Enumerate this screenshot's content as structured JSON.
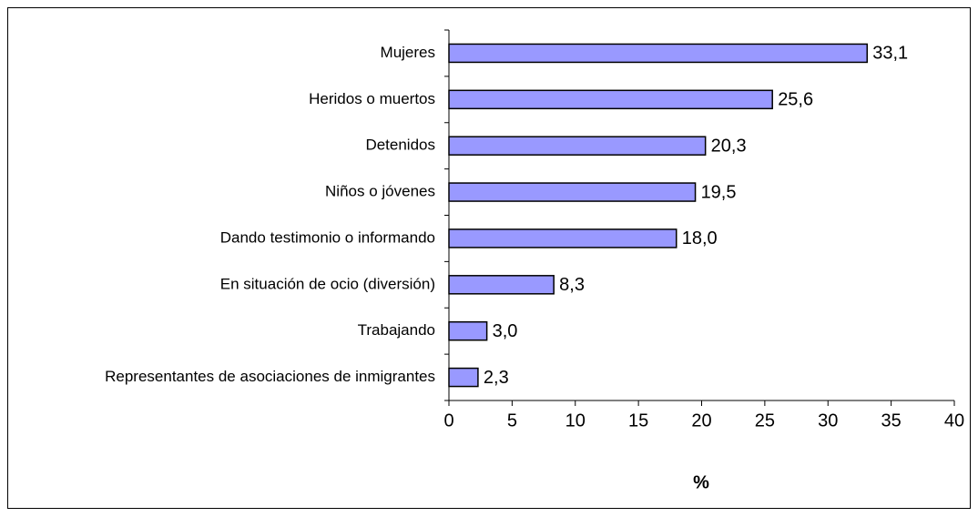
{
  "chart_data": {
    "type": "bar",
    "orientation": "horizontal",
    "categories": [
      "Mujeres",
      "Heridos o muertos",
      "Detenidos",
      "Niños o jóvenes",
      "Dando testimonio o informando",
      "En situación de ocio (diversión)",
      "Trabajando",
      "Representantes de asociaciones de inmigrantes"
    ],
    "values": [
      33.1,
      25.6,
      20.3,
      19.5,
      18.0,
      8.3,
      3.0,
      2.3
    ],
    "value_labels": [
      "33,1",
      "25,6",
      "20,3",
      "19,5",
      "18,0",
      "8,3",
      "3,0",
      "2,3"
    ],
    "color": "#9999ff",
    "xlabel": "%",
    "xlim": [
      0,
      40
    ],
    "xticks": [
      0,
      5,
      10,
      15,
      20,
      25,
      30,
      35,
      40
    ]
  }
}
